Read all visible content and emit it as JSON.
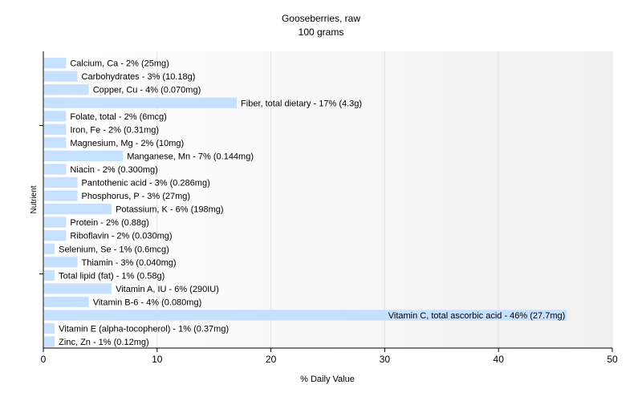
{
  "chart_data": {
    "type": "bar",
    "orientation": "horizontal",
    "title": "Gooseberries, raw",
    "subtitle": "100 grams",
    "xlabel": "% Daily Value",
    "ylabel": "Nutrient",
    "xlim": [
      0,
      50
    ],
    "x_ticks": [
      "0",
      "10",
      "20",
      "30",
      "40",
      "50"
    ],
    "grid": true,
    "bar_color": "#c6e0ff",
    "categories": [
      "Calcium, Ca",
      "Carbohydrates",
      "Copper, Cu",
      "Fiber, total dietary",
      "Folate, total",
      "Iron, Fe",
      "Magnesium, Mg",
      "Manganese, Mn",
      "Niacin",
      "Pantothenic acid",
      "Phosphorus, P",
      "Potassium, K",
      "Protein",
      "Riboflavin",
      "Selenium, Se",
      "Thiamin",
      "Total lipid (fat)",
      "Vitamin A, IU",
      "Vitamin B-6",
      "Vitamin C, total ascorbic acid",
      "Vitamin E (alpha-tocopherol)",
      "Zinc, Zn"
    ],
    "values": [
      2,
      3,
      4,
      17,
      2,
      2,
      2,
      7,
      2,
      3,
      3,
      6,
      2,
      2,
      1,
      3,
      1,
      6,
      4,
      46,
      1,
      1
    ],
    "data_labels": [
      "Calcium, Ca - 2% (25mg)",
      "Carbohydrates - 3% (10.18g)",
      "Copper, Cu - 4% (0.070mg)",
      "Fiber, total dietary - 17% (4.3g)",
      "Folate, total - 2% (6mcg)",
      "Iron, Fe - 2% (0.31mg)",
      "Magnesium, Mg - 2% (10mg)",
      "Manganese, Mn - 7% (0.144mg)",
      "Niacin - 2% (0.300mg)",
      "Pantothenic acid - 3% (0.286mg)",
      "Phosphorus, P - 3% (27mg)",
      "Potassium, K - 6% (198mg)",
      "Protein - 2% (0.88g)",
      "Riboflavin - 2% (0.030mg)",
      "Selenium, Se - 1% (0.6mcg)",
      "Thiamin - 3% (0.040mg)",
      "Total lipid (fat) - 1% (0.58g)",
      "Vitamin A, IU - 6% (290IU)",
      "Vitamin B-6 - 4% (0.080mg)",
      "Vitamin C, total ascorbic acid - 46% (27.7mg)",
      "Vitamin E (alpha-tocopherol) - 1% (0.37mg)",
      "Zinc, Zn - 1% (0.12mg)"
    ]
  }
}
